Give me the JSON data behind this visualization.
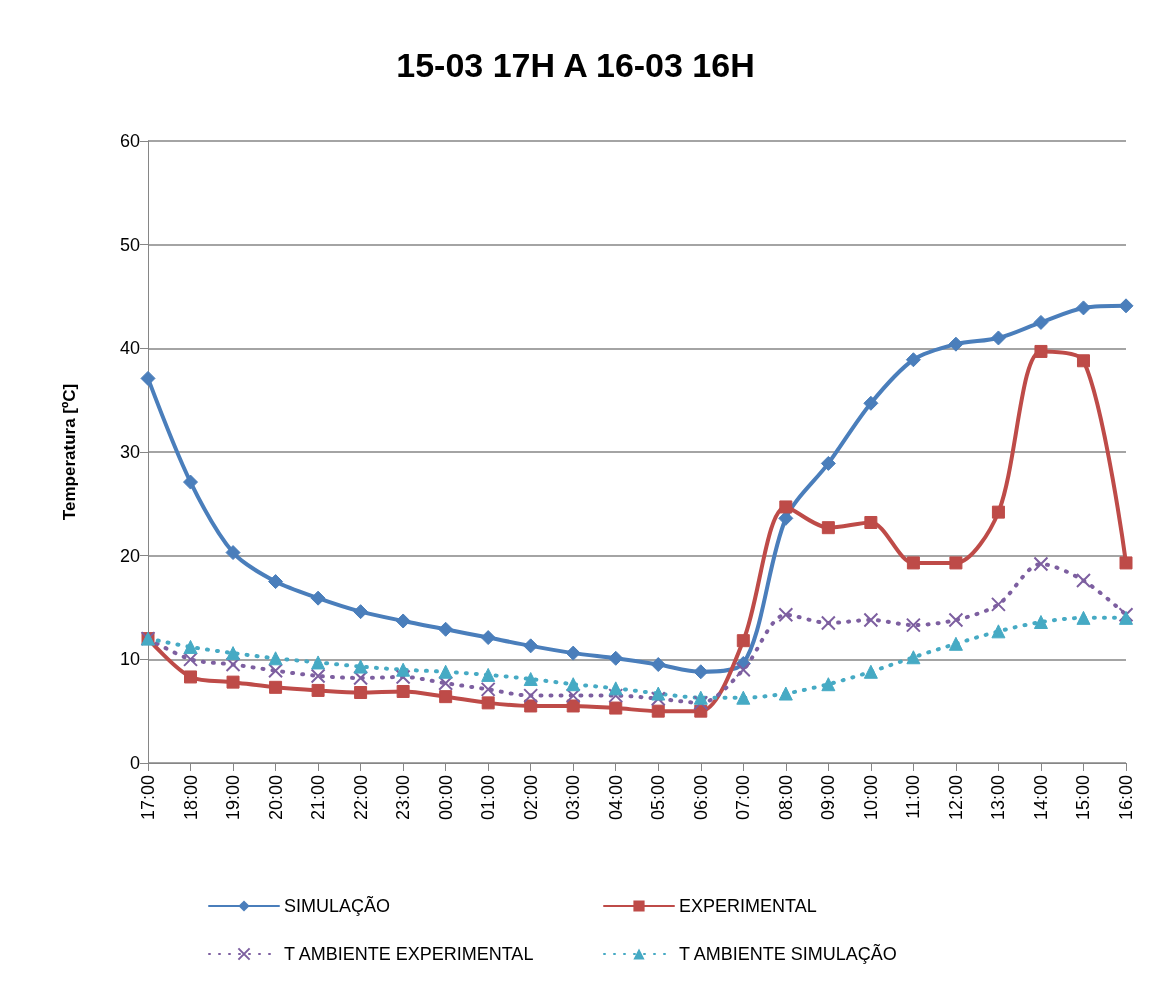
{
  "chart_data": {
    "type": "line",
    "title": "15-03 17H A 16-03 16H",
    "ylabel": "Temperatura [ºC]",
    "categories": [
      "17:00",
      "18:00",
      "19:00",
      "20:00",
      "21:00",
      "22:00",
      "23:00",
      "00:00",
      "01:00",
      "02:00",
      "03:00",
      "04:00",
      "05:00",
      "06:00",
      "07:00",
      "08:00",
      "09:00",
      "10:00",
      "11:00",
      "12:00",
      "13:00",
      "14:00",
      "15:00",
      "16:00"
    ],
    "series": [
      {
        "name": "SIMULAÇÃO",
        "color": "#4a7ebb",
        "marker": "diamond",
        "line_style": "solid",
        "values": [
          37.1,
          27.1,
          20.3,
          17.5,
          15.9,
          14.6,
          13.7,
          12.9,
          12.1,
          11.3,
          10.6,
          10.1,
          9.5,
          8.8,
          9.6,
          23.6,
          28.9,
          34.7,
          38.9,
          40.4,
          41.0,
          42.5,
          43.9,
          44.1
        ]
      },
      {
        "name": "EXPERIMENTAL",
        "color": "#be4b48",
        "marker": "square",
        "line_style": "solid",
        "values": [
          12.0,
          8.3,
          7.8,
          7.3,
          7.0,
          6.8,
          6.9,
          6.4,
          5.8,
          5.5,
          5.5,
          5.3,
          5.0,
          5.0,
          11.8,
          24.7,
          22.7,
          23.2,
          19.3,
          19.3,
          24.2,
          39.7,
          38.8,
          19.3
        ]
      },
      {
        "name": "T AMBIENTE EXPERIMENTAL",
        "color": "#7d5fa0",
        "marker": "cross",
        "line_style": "dotted",
        "values": [
          12.0,
          10.0,
          9.5,
          8.9,
          8.4,
          8.2,
          8.3,
          7.7,
          7.1,
          6.5,
          6.5,
          6.5,
          6.2,
          5.8,
          9.0,
          14.3,
          13.5,
          13.8,
          13.3,
          13.8,
          15.3,
          19.2,
          17.6,
          14.3
        ]
      },
      {
        "name": "T AMBIENTE SIMULAÇÃO",
        "color": "#46aac4",
        "marker": "triangle",
        "line_style": "dotted",
        "values": [
          12.0,
          11.2,
          10.6,
          10.1,
          9.7,
          9.3,
          9.0,
          8.8,
          8.5,
          8.1,
          7.6,
          7.2,
          6.7,
          6.3,
          6.3,
          6.7,
          7.6,
          8.8,
          10.2,
          11.5,
          12.7,
          13.6,
          14.0,
          14.0
        ]
      }
    ],
    "ylim": [
      0,
      60
    ],
    "yticks": [
      0,
      10,
      20,
      30,
      40,
      50,
      60
    ],
    "grid": "y",
    "legend": "bottom"
  }
}
